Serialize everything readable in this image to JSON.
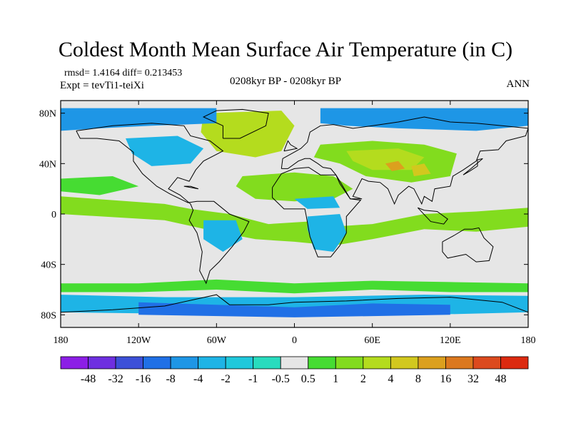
{
  "title": "Coldest Month Mean Surface Air Temperature (in C)",
  "stats_line": "rmsd= 1.4164 diff= 0.213453",
  "expt_line": "Expt = tevTi1-teiXi",
  "period": "0208kyr BP - 0208kyr BP",
  "season": "ANN",
  "map": {
    "projection": "equirectangular",
    "lon_range": [
      -180,
      180
    ],
    "lat_range": [
      -90,
      90
    ],
    "background_color": "#e6e6e6",
    "lat_ticks": [
      "80N",
      "40N",
      "0",
      "40S",
      "80S"
    ],
    "lat_tick_values": [
      80,
      40,
      0,
      -40,
      -80
    ],
    "lon_ticks": [
      "180",
      "120W",
      "60W",
      "0",
      "60E",
      "120E",
      "180"
    ],
    "lon_tick_values": [
      -180,
      -120,
      -60,
      0,
      60,
      120,
      180
    ]
  },
  "colorbar": {
    "labels": [
      "-48",
      "-32",
      "-16",
      "-8",
      "-4",
      "-2",
      "-1",
      "-0.5",
      "0.5",
      "1",
      "2",
      "4",
      "8",
      "16",
      "32",
      "48"
    ],
    "colors": [
      "#8c1ee6",
      "#6e2fe0",
      "#3c50d8",
      "#2070e6",
      "#1e96e6",
      "#1eb4e6",
      "#20c8dc",
      "#28dcbe",
      "#e6e6e6",
      "#46dc32",
      "#82dc1e",
      "#b4dc1e",
      "#d2c81e",
      "#dca01e",
      "#dc781e",
      "#dc4a1e",
      "#dc2a10"
    ]
  },
  "chart_data": {
    "type": "heatmap",
    "title": "Coldest Month Mean Surface Air Temperature (in C)",
    "xlabel": "",
    "ylabel": "",
    "xlim": [
      -180,
      180
    ],
    "ylim": [
      -90,
      90
    ],
    "levels": [
      -48,
      -32,
      -16,
      -8,
      -4,
      -2,
      -1,
      -0.5,
      0.5,
      1,
      2,
      4,
      8,
      16,
      32,
      48
    ],
    "regions": [
      {
        "level_index": 14,
        "points": [
          [
            -55,
            75
          ],
          [
            -35,
            76
          ],
          [
            -20,
            70
          ],
          [
            -22,
            58
          ],
          [
            -35,
            52
          ],
          [
            -50,
            55
          ],
          [
            -58,
            64
          ]
        ]
      },
      {
        "level_index": 11,
        "points": [
          [
            -70,
            80
          ],
          [
            -10,
            82
          ],
          [
            0,
            70
          ],
          [
            -10,
            50
          ],
          [
            -30,
            45
          ],
          [
            -60,
            50
          ],
          [
            -72,
            65
          ]
        ]
      },
      {
        "level_index": 10,
        "points": [
          [
            20,
            55
          ],
          [
            60,
            58
          ],
          [
            100,
            55
          ],
          [
            125,
            48
          ],
          [
            120,
            30
          ],
          [
            90,
            25
          ],
          [
            55,
            30
          ],
          [
            35,
            40
          ],
          [
            15,
            45
          ]
        ]
      },
      {
        "level_index": 11,
        "points": [
          [
            40,
            50
          ],
          [
            80,
            52
          ],
          [
            100,
            45
          ],
          [
            90,
            35
          ],
          [
            60,
            35
          ],
          [
            45,
            42
          ]
        ]
      },
      {
        "level_index": 10,
        "points": [
          [
            -40,
            30
          ],
          [
            0,
            33
          ],
          [
            30,
            30
          ],
          [
            45,
            20
          ],
          [
            30,
            12
          ],
          [
            0,
            10
          ],
          [
            -30,
            12
          ],
          [
            -45,
            22
          ]
        ]
      },
      {
        "level_index": 9,
        "points": [
          [
            -180,
            28
          ],
          [
            -140,
            30
          ],
          [
            -120,
            22
          ],
          [
            -150,
            15
          ],
          [
            -180,
            18
          ]
        ]
      },
      {
        "level_index": 10,
        "points": [
          [
            -180,
            14
          ],
          [
            -100,
            8
          ],
          [
            -80,
            4
          ],
          [
            -50,
            0
          ],
          [
            -20,
            -8
          ],
          [
            10,
            -6
          ],
          [
            30,
            -10
          ],
          [
            60,
            -8
          ],
          [
            100,
            0
          ],
          [
            140,
            2
          ],
          [
            180,
            5
          ],
          [
            180,
            -10
          ],
          [
            140,
            -14
          ],
          [
            100,
            -12
          ],
          [
            60,
            -20
          ],
          [
            30,
            -25
          ],
          [
            0,
            -22
          ],
          [
            -30,
            -20
          ],
          [
            -60,
            -14
          ],
          [
            -100,
            -5
          ],
          [
            -180,
            0
          ]
        ]
      },
      {
        "level_index": 9,
        "points": [
          [
            -180,
            -55
          ],
          [
            -120,
            -55
          ],
          [
            -60,
            -52
          ],
          [
            0,
            -55
          ],
          [
            60,
            -53
          ],
          [
            120,
            -54
          ],
          [
            180,
            -55
          ],
          [
            180,
            -62
          ],
          [
            120,
            -62
          ],
          [
            60,
            -60
          ],
          [
            0,
            -63
          ],
          [
            -60,
            -60
          ],
          [
            -120,
            -62
          ],
          [
            -180,
            -62
          ]
        ]
      },
      {
        "level_index": 4,
        "points": [
          [
            -180,
            84
          ],
          [
            -100,
            84
          ],
          [
            -60,
            84
          ],
          [
            -60,
            72
          ],
          [
            -110,
            70
          ],
          [
            -150,
            68
          ],
          [
            -180,
            66
          ]
        ]
      },
      {
        "level_index": 4,
        "points": [
          [
            20,
            84
          ],
          [
            100,
            84
          ],
          [
            180,
            84
          ],
          [
            180,
            70
          ],
          [
            140,
            66
          ],
          [
            80,
            68
          ],
          [
            40,
            70
          ],
          [
            20,
            72
          ]
        ]
      },
      {
        "level_index": 5,
        "points": [
          [
            -130,
            60
          ],
          [
            -90,
            62
          ],
          [
            -70,
            52
          ],
          [
            -80,
            40
          ],
          [
            -110,
            38
          ],
          [
            -125,
            48
          ]
        ]
      },
      {
        "level_index": 5,
        "points": [
          [
            -70,
            -5
          ],
          [
            -45,
            -5
          ],
          [
            -40,
            -20
          ],
          [
            -55,
            -30
          ],
          [
            -70,
            -20
          ]
        ]
      },
      {
        "level_index": 5,
        "points": [
          [
            10,
            -2
          ],
          [
            35,
            0
          ],
          [
            40,
            -15
          ],
          [
            30,
            -30
          ],
          [
            15,
            -28
          ],
          [
            10,
            -12
          ]
        ]
      },
      {
        "level_index": 5,
        "points": [
          [
            0,
            12
          ],
          [
            30,
            14
          ],
          [
            35,
            5
          ],
          [
            10,
            4
          ]
        ]
      },
      {
        "level_index": 5,
        "points": [
          [
            -180,
            -64
          ],
          [
            -100,
            -66
          ],
          [
            0,
            -66
          ],
          [
            100,
            -64
          ],
          [
            180,
            -65
          ],
          [
            180,
            -78
          ],
          [
            100,
            -80
          ],
          [
            0,
            -80
          ],
          [
            -100,
            -79
          ],
          [
            -180,
            -78
          ]
        ]
      },
      {
        "level_index": 3,
        "points": [
          [
            -120,
            -70
          ],
          [
            -60,
            -72
          ],
          [
            0,
            -74
          ],
          [
            60,
            -71
          ],
          [
            120,
            -72
          ],
          [
            120,
            -80
          ],
          [
            0,
            -82
          ],
          [
            -120,
            -80
          ]
        ]
      },
      {
        "level_index": 13,
        "points": [
          [
            70,
            40
          ],
          [
            80,
            42
          ],
          [
            85,
            36
          ],
          [
            75,
            34
          ]
        ]
      },
      {
        "level_index": 12,
        "points": [
          [
            90,
            38
          ],
          [
            100,
            40
          ],
          [
            105,
            32
          ],
          [
            92,
            30
          ]
        ]
      }
    ]
  }
}
